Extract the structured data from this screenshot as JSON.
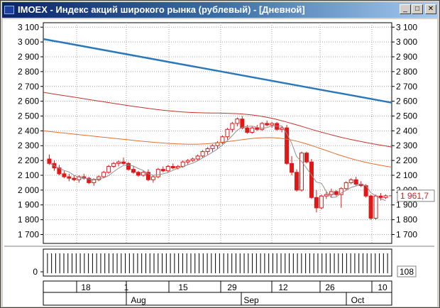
{
  "window": {
    "title": "IMOEX - Индекс акций широкого рынка (рублевый) - [Дневной]",
    "controls": {
      "minimize": "_",
      "maximize": "□",
      "close": "✕"
    }
  },
  "chart_data": {
    "type": "candlestick",
    "y_ticks": [
      1700,
      1800,
      1900,
      2000,
      2100,
      2200,
      2300,
      2400,
      2500,
      2600,
      2700,
      2800,
      2900,
      3000,
      3100
    ],
    "y_tick_labels": [
      "1 700",
      "1 800",
      "1 900",
      "2 000",
      "2 100",
      "2 200",
      "2 300",
      "2 400",
      "2 500",
      "2 600",
      "2 700",
      "2 800",
      "2 900",
      "3 000",
      "3 100"
    ],
    "ylim": [
      1640,
      3130
    ],
    "grid": true,
    "last_value_label": "1 961,7",
    "last_value": 1961.7,
    "candles": [
      [
        2210,
        2240,
        2170,
        2180
      ],
      [
        2180,
        2200,
        2130,
        2150
      ],
      [
        2150,
        2170,
        2100,
        2110
      ],
      [
        2110,
        2130,
        2080,
        2090
      ],
      [
        2090,
        2110,
        2060,
        2080
      ],
      [
        2080,
        2100,
        2060,
        2070
      ],
      [
        2070,
        2100,
        2050,
        2090
      ],
      [
        2090,
        2110,
        2070,
        2080
      ],
      [
        2080,
        2090,
        2040,
        2050
      ],
      [
        2050,
        2080,
        2030,
        2070
      ],
      [
        2070,
        2100,
        2060,
        2090
      ],
      [
        2090,
        2130,
        2080,
        2120
      ],
      [
        2120,
        2170,
        2110,
        2160
      ],
      [
        2160,
        2190,
        2150,
        2180
      ],
      [
        2180,
        2200,
        2160,
        2190
      ],
      [
        2190,
        2220,
        2170,
        2180
      ],
      [
        2180,
        2190,
        2130,
        2140
      ],
      [
        2140,
        2160,
        2110,
        2120
      ],
      [
        2120,
        2130,
        2090,
        2100
      ],
      [
        2100,
        2130,
        2090,
        2120
      ],
      [
        2120,
        2140,
        2060,
        2070
      ],
      [
        2070,
        2100,
        2050,
        2090
      ],
      [
        2090,
        2150,
        2080,
        2140
      ],
      [
        2140,
        2160,
        2120,
        2130
      ],
      [
        2130,
        2170,
        2120,
        2160
      ],
      [
        2160,
        2180,
        2140,
        2150
      ],
      [
        2150,
        2170,
        2140,
        2160
      ],
      [
        2160,
        2200,
        2150,
        2190
      ],
      [
        2190,
        2210,
        2170,
        2200
      ],
      [
        2200,
        2220,
        2190,
        2210
      ],
      [
        2210,
        2240,
        2200,
        2230
      ],
      [
        2230,
        2270,
        2220,
        2260
      ],
      [
        2260,
        2290,
        2240,
        2280
      ],
      [
        2280,
        2310,
        2260,
        2300
      ],
      [
        2300,
        2330,
        2280,
        2320
      ],
      [
        2320,
        2370,
        2310,
        2360
      ],
      [
        2360,
        2420,
        2340,
        2410
      ],
      [
        2410,
        2460,
        2390,
        2450
      ],
      [
        2450,
        2490,
        2430,
        2480
      ],
      [
        2480,
        2500,
        2410,
        2420
      ],
      [
        2420,
        2440,
        2380,
        2390
      ],
      [
        2390,
        2430,
        2380,
        2420
      ],
      [
        2420,
        2440,
        2400,
        2410
      ],
      [
        2410,
        2460,
        2400,
        2450
      ],
      [
        2450,
        2470,
        2430,
        2440
      ],
      [
        2440,
        2460,
        2420,
        2450
      ],
      [
        2450,
        2460,
        2400,
        2410
      ],
      [
        2410,
        2430,
        2390,
        2420
      ],
      [
        2420,
        2440,
        2170,
        2180
      ],
      [
        2180,
        2230,
        2100,
        2120
      ],
      [
        2120,
        2140,
        1990,
        2000
      ],
      [
        2000,
        2260,
        1990,
        2250
      ],
      [
        2250,
        2260,
        2180,
        2190
      ],
      [
        2190,
        2210,
        1940,
        1950
      ],
      [
        1950,
        2000,
        1850,
        1880
      ],
      [
        1880,
        1970,
        1870,
        1960
      ],
      [
        1960,
        1990,
        1940,
        1970
      ],
      [
        1970,
        2010,
        1950,
        1990
      ],
      [
        1990,
        2000,
        1960,
        1970
      ],
      [
        1970,
        2020,
        1880,
        2010
      ],
      [
        2010,
        2060,
        2000,
        2050
      ],
      [
        2050,
        2080,
        2040,
        2070
      ],
      [
        2070,
        2090,
        2030,
        2040
      ],
      [
        2040,
        2060,
        2020,
        2030
      ],
      [
        2030,
        2040,
        1950,
        1960
      ],
      [
        1960,
        1970,
        1800,
        1810
      ],
      [
        1810,
        1970,
        1800,
        1960
      ],
      [
        1960,
        1980,
        1930,
        1950
      ],
      [
        1950,
        1970,
        1940,
        1961.7
      ]
    ],
    "moving_averages": [
      {
        "color": "#2a78b8",
        "from": 3020,
        "to": 2590
      },
      {
        "color": "#c83228",
        "from": 2660,
        "to": 2290
      },
      {
        "color": "#e07030",
        "from": 2400,
        "to": 2150
      },
      {
        "color": "#909090",
        "from": 2220,
        "to": 1960
      }
    ],
    "volume": {
      "tick_label": "0",
      "right_label": "108",
      "bars": 84
    },
    "x_axis": {
      "day_labels": [
        "18",
        "1",
        "15",
        "29",
        "12",
        "26",
        "10"
      ],
      "month_labels": [
        "Aug",
        "Sep",
        "Oct"
      ]
    }
  }
}
